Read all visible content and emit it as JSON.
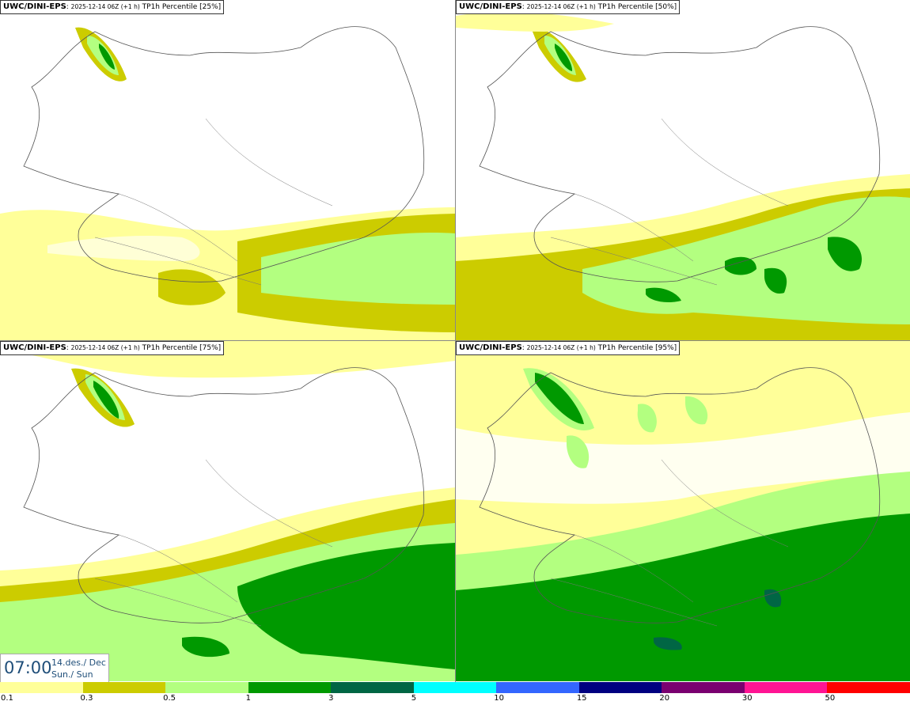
{
  "panels": [
    {
      "model": "UWC/DINI-EPS",
      "run": "2025-12-14 06Z (+1 h)",
      "field": "TP1h Percentile [25%]"
    },
    {
      "model": "UWC/DINI-EPS",
      "run": "2025-12-14 06Z (+1 h)",
      "field": "TP1h Percentile [50%]"
    },
    {
      "model": "UWC/DINI-EPS",
      "run": "2025-12-14 06Z (+1 h)",
      "field": "TP1h Percentile [75%]"
    },
    {
      "model": "UWC/DINI-EPS",
      "run": "2025-12-14 06Z (+1 h)",
      "field": "TP1h Percentile [95%]"
    }
  ],
  "valid_time": {
    "time": "07:00",
    "date": "14.des./ Dec",
    "weekday": "Sun./ Sun"
  },
  "legend": {
    "ticks": [
      "0.1",
      "0.3",
      "0.5",
      "1",
      "3",
      "5",
      "10",
      "15",
      "20",
      "30",
      "50"
    ],
    "colors": [
      "#ffff99",
      "#cccc00",
      "#b3ff80",
      "#009900",
      "#006644",
      "#00ffff",
      "#3366ff",
      "#000080",
      "#7a0070",
      "#ff1493",
      "#ff0000"
    ]
  }
}
